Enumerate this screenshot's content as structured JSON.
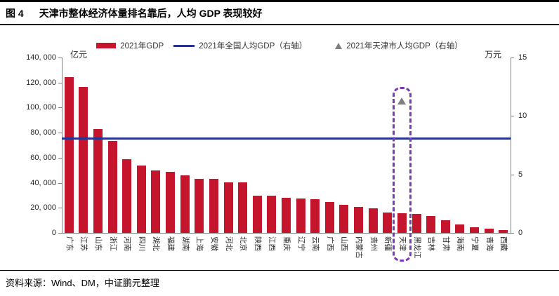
{
  "header": {
    "fig_label": "图 4",
    "fig_title": "天津市整体经济体量排名靠后，人均 GDP 表现较好"
  },
  "legend": {
    "items": [
      {
        "label": "2021年GDP",
        "type": "bar",
        "color": "#c5152c"
      },
      {
        "label": "2021年全国人均GDP（右轴）",
        "type": "line",
        "color": "#28328f"
      },
      {
        "label": "2021年天津市人均GDP（右轴）",
        "type": "triangle",
        "color": "#7f7f7f"
      }
    ]
  },
  "chart_data": {
    "type": "bar",
    "title": "",
    "categories": [
      "广东",
      "江苏",
      "山东",
      "浙江",
      "河南",
      "四川",
      "湖北",
      "福建",
      "湖南",
      "上海",
      "安徽",
      "河北",
      "北京",
      "陕西",
      "江西",
      "重庆",
      "辽宁",
      "云南",
      "广西",
      "山西",
      "内蒙古",
      "贵州",
      "新疆",
      "天津",
      "黑龙江",
      "吉林",
      "甘肃",
      "海南",
      "宁夏",
      "青海",
      "西藏"
    ],
    "series": [
      {
        "name": "2021年GDP",
        "type": "bar",
        "axis": "left",
        "unit": "亿元",
        "color": "#c5152c",
        "values": [
          124370,
          116364,
          83096,
          73516,
          58887,
          53851,
          50013,
          48810,
          46063,
          43215,
          42959,
          40391,
          40270,
          29801,
          29620,
          27894,
          27584,
          27147,
          24741,
          22590,
          20514,
          19586,
          15984,
          15695,
          14879,
          13236,
          10243,
          6475,
          4522,
          3347,
          2080
        ]
      },
      {
        "name": "2021年全国人均GDP（右轴）",
        "type": "hline",
        "axis": "right",
        "unit": "万元",
        "color": "#28328f",
        "value": 8.1
      },
      {
        "name": "2021年天津市人均GDP（右轴）",
        "type": "point",
        "axis": "right",
        "unit": "万元",
        "color": "#7f7f7f",
        "category": "天津",
        "value": 11.3
      }
    ],
    "left_axis": {
      "title": "亿元",
      "min": 0,
      "max": 140000,
      "tick_step": 20000,
      "ticks": [
        "0",
        "20, 000",
        "40, 000",
        "60, 000",
        "80, 000",
        "100, 000",
        "120, 000",
        "140, 000"
      ]
    },
    "right_axis": {
      "title": "万元",
      "min": 0,
      "max": 15,
      "tick_step": 5,
      "ticks": [
        "0",
        "5",
        "10",
        "15"
      ]
    },
    "highlight": {
      "category": "天津",
      "style": "dashed-box",
      "color": "#7c3ab8"
    },
    "grid": false,
    "legend_position": "top"
  },
  "footer": {
    "source": "资料来源：Wind、DM，中证鹏元整理"
  }
}
